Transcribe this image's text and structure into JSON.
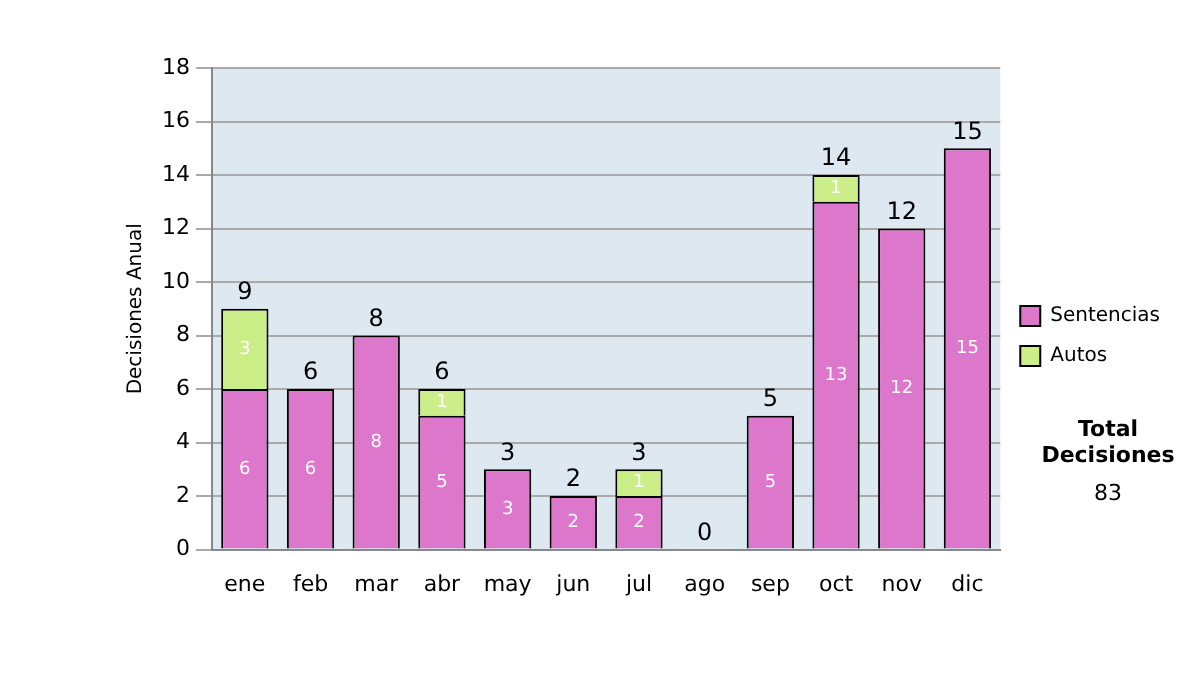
{
  "chart_data": {
    "type": "bar",
    "stacked": true,
    "ylabel": "Decisiones Anual",
    "categories": [
      "ene",
      "feb",
      "mar",
      "abr",
      "may",
      "jun",
      "jul",
      "ago",
      "sep",
      "oct",
      "nov",
      "dic"
    ],
    "series": [
      {
        "name": "Sentencias",
        "color": "#dd77cc",
        "values": [
          6,
          6,
          8,
          5,
          3,
          2,
          2,
          0,
          5,
          13,
          12,
          15
        ],
        "value_labels": [
          "6",
          "6",
          "8",
          "5",
          "3",
          "2",
          "2",
          null,
          "5",
          "13",
          "12",
          "15"
        ]
      },
      {
        "name": "Autos",
        "color": "#ccee88",
        "values": [
          3,
          0,
          0,
          1,
          0,
          0,
          1,
          0,
          0,
          1,
          0,
          0
        ],
        "value_labels": [
          "3",
          null,
          null,
          "1",
          null,
          null,
          "1",
          null,
          null,
          "1",
          null,
          null
        ]
      }
    ],
    "totals": [
      "9",
      "6",
      "8",
      "6",
      "3",
      "2",
      "3",
      "0",
      "5",
      "14",
      "12",
      "15"
    ],
    "ylim": [
      0,
      18
    ],
    "yticks": [
      0,
      2,
      4,
      6,
      8,
      10,
      12,
      14,
      16,
      18
    ],
    "grid": "y",
    "legend": "right",
    "annotations": [
      "Total Decisiones",
      "83"
    ]
  }
}
